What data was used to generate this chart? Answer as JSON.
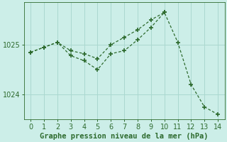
{
  "line1_x": [
    0,
    1,
    2,
    3,
    4,
    5,
    6,
    7,
    8,
    9,
    10,
    11,
    12,
    13,
    14
  ],
  "line1_y": [
    1024.85,
    1024.95,
    1025.05,
    1024.88,
    1024.82,
    1024.72,
    1025.0,
    1025.15,
    1025.3,
    1025.5,
    1025.65,
    1025.05,
    1024.2,
    1023.75,
    1023.6
  ],
  "line2_x": [
    0,
    1,
    2,
    3,
    4,
    5,
    6,
    7,
    8,
    9,
    10
  ],
  "line2_y": [
    1024.85,
    1024.95,
    1025.05,
    1024.78,
    1024.68,
    1024.5,
    1024.82,
    1024.88,
    1025.1,
    1025.35,
    1025.65
  ],
  "line_color": "#2d6a2d",
  "bg_color": "#cceee8",
  "xlabel": "Graphe pression niveau de la mer (hPa)",
  "xlim": [
    -0.5,
    14.5
  ],
  "ylim": [
    1023.5,
    1025.85
  ],
  "yticks": [
    1024,
    1025
  ],
  "xticks": [
    0,
    1,
    2,
    3,
    4,
    5,
    6,
    7,
    8,
    9,
    10,
    11,
    12,
    13,
    14
  ],
  "grid_color": "#aad8d0",
  "xlabel_fontsize": 7.5,
  "tick_fontsize": 7.0,
  "figwidth": 3.2,
  "figheight": 2.0,
  "dpi": 100
}
